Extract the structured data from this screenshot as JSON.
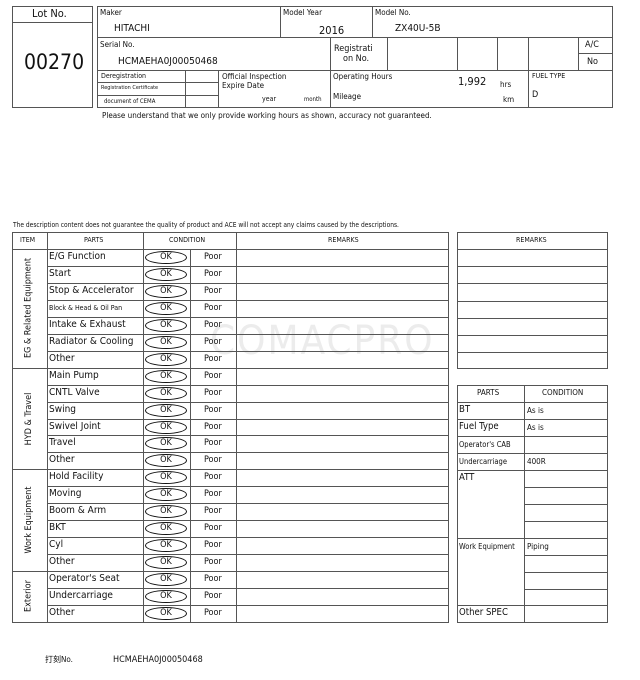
{
  "lot": {
    "label": "Lot No.",
    "value": "00270"
  },
  "header": {
    "maker_label": "Maker",
    "maker": "HITACHI",
    "model_year_label": "Model Year",
    "model_year": "2016",
    "model_no_label": "Model No.",
    "model_no": "ZX40U-5B",
    "serial_label": "Serial No.",
    "serial": "HCMAEHA0J00050468",
    "registration_label_1": "Registrati",
    "registration_label_2": "on No.",
    "ac_label": "A/C",
    "ac_value": "No",
    "dereg_1": "Deregistration",
    "dereg_2": "Registration Certificate",
    "dereg_3": "document of CEMA",
    "inspection_1": "Official Inspection",
    "inspection_2": "Expire Date",
    "year": "year",
    "month": "month",
    "operating_hours_label": "Operating Hours",
    "operating_hours": "1,992",
    "hrs": "hrs",
    "mileage_label": "Mileage",
    "km": "km",
    "fuel_type_label": "FUEL TYPE",
    "fuel_type": "D"
  },
  "notice": "Please understand that we only provide working hours as shown, accuracy not guaranteed.",
  "disclaimer": "The description content does not guarantee the quality of product and ACE will not accept any claims caused by the descriptions.",
  "table": {
    "headers": {
      "item": "ITEM",
      "parts": "PARTS",
      "condition": "CONDITION",
      "remarks": "REMARKS"
    },
    "ok": "OK",
    "poor": "Poor",
    "sections": [
      {
        "name": "EG & Related Equipment",
        "parts": [
          "E/G Function",
          "Start",
          "Stop & Accelerator",
          "Block & Head & Oil Pan",
          "Intake & Exhaust",
          "Radiator & Cooling",
          "Other"
        ]
      },
      {
        "name": "HYD & Travel",
        "parts": [
          "Main Pump",
          "CNTL Valve",
          "Swing",
          "Swivel Joint",
          "Travel",
          "Other"
        ]
      },
      {
        "name": "Work Equipment",
        "parts": [
          "Hold Facility",
          "Moving",
          "Boom & Arm",
          "BKT",
          "Cyl",
          "Other"
        ]
      },
      {
        "name": "Exterior",
        "parts": [
          "Operator's Seat",
          "Undercarriage",
          "Other"
        ]
      }
    ]
  },
  "side_remarks": {
    "header": "REMARKS"
  },
  "spec": {
    "headers": {
      "parts": "PARTS",
      "condition": "CONDITION"
    },
    "rows": [
      {
        "part": "BT",
        "condition": "As is"
      },
      {
        "part": "Fuel Type",
        "condition": "As is"
      },
      {
        "part": "Operator's CAB",
        "condition": ""
      },
      {
        "part": "Undercarriage",
        "condition": "400R"
      },
      {
        "part": "ATT",
        "condition": ""
      },
      {
        "part": "Work Equipment",
        "condition": "Piping"
      },
      {
        "part": "Other SPEC",
        "condition": ""
      }
    ]
  },
  "footer": {
    "label": "打刻No.",
    "serial": "HCMAEHA0J00050468"
  },
  "watermark": "COMACPRO"
}
